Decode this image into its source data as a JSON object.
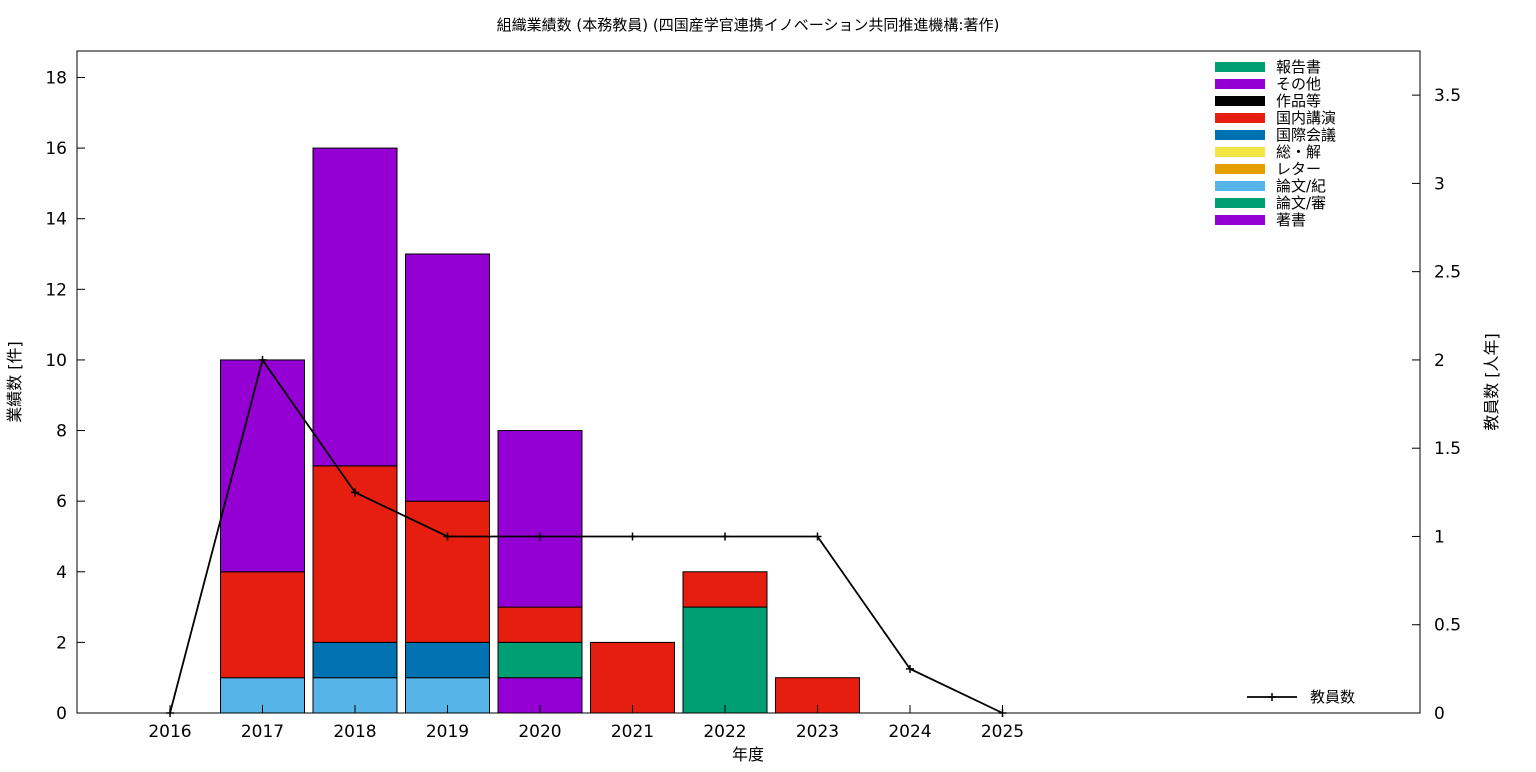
{
  "chart_data": {
    "type": "bar",
    "title": "組織業績数 (本務教員) (四国産学官連携イノベーション共同推進機構:著作)",
    "xlabel": "年度",
    "ylabel": "業績数 [件]",
    "y2label": "教員数 [人年]",
    "categories": [
      "2016",
      "2017",
      "2018",
      "2019",
      "2020",
      "2021",
      "2022",
      "2023",
      "2024",
      "2025"
    ],
    "ylim": [
      0,
      18.75
    ],
    "y2lim": [
      0,
      3.75
    ],
    "yticks": [
      "0",
      "2",
      "4",
      "6",
      "8",
      "10",
      "12",
      "14",
      "16",
      "18"
    ],
    "y2ticks": [
      "0",
      "0.5",
      "1",
      "1.5",
      "2",
      "2.5",
      "3",
      "3.5"
    ],
    "stacked": true,
    "grid": false,
    "legend_position": "top-right",
    "series": [
      {
        "name": "著書",
        "color": "#9400d3",
        "values": [
          0,
          0,
          0,
          0,
          1,
          0,
          0,
          0,
          0,
          0
        ]
      },
      {
        "name": "論文/審",
        "color": "#009e73",
        "values": [
          0,
          0,
          0,
          0,
          1,
          0,
          3,
          0,
          0,
          0
        ]
      },
      {
        "name": "論文/紀",
        "color": "#56b4e9",
        "values": [
          0,
          1,
          1,
          1,
          0,
          0,
          0,
          0,
          0,
          0
        ]
      },
      {
        "name": "レター",
        "color": "#e69f00",
        "values": [
          0,
          0,
          0,
          0,
          0,
          0,
          0,
          0,
          0,
          0
        ]
      },
      {
        "name": "総・解",
        "color": "#f0e442",
        "values": [
          0,
          0,
          0,
          0,
          0,
          0,
          0,
          0,
          0,
          0
        ]
      },
      {
        "name": "国際会議",
        "color": "#0072b2",
        "values": [
          0,
          0,
          1,
          1,
          0,
          0,
          0,
          0,
          0,
          0
        ]
      },
      {
        "name": "国内講演",
        "color": "#e51e10",
        "values": [
          0,
          3,
          5,
          4,
          1,
          2,
          1,
          1,
          0,
          0
        ]
      },
      {
        "name": "作品等",
        "color": "#000000",
        "values": [
          0,
          0,
          0,
          0,
          0,
          0,
          0,
          0,
          0,
          0
        ]
      },
      {
        "name": "その他",
        "color": "#9400d3",
        "values": [
          0,
          6,
          9,
          7,
          5,
          0,
          0,
          0,
          0,
          0
        ]
      },
      {
        "name": "報告書",
        "color": "#009e73",
        "values": [
          0,
          0,
          0,
          0,
          0,
          0,
          0,
          0,
          0,
          0
        ]
      }
    ],
    "line_series": {
      "name": "教員数",
      "axis": "y2",
      "color": "#000000",
      "values": [
        0,
        2,
        1.25,
        1,
        1,
        1,
        1,
        1,
        0.25,
        0
      ]
    }
  }
}
